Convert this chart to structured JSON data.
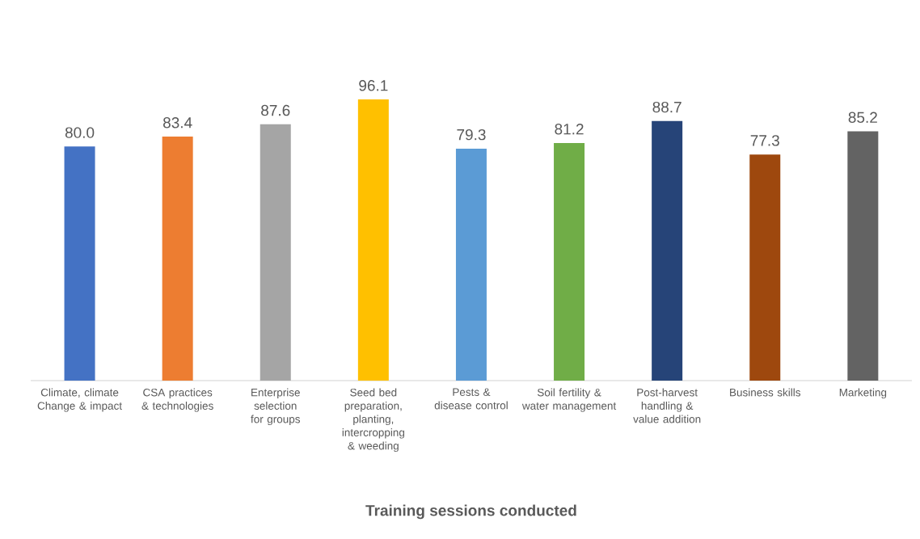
{
  "chart_data": {
    "type": "bar",
    "xlabel": "Training sessions conducted",
    "categories": [
      "Climate, climate Change & impact",
      "CSA practices & technologies",
      "Enterprise selection for groups",
      "Seed bed preparation, planting, intercropping & weeding",
      "Pests & disease control",
      "Soil fertility & water management",
      "Post-harvest handling & value addition",
      "Business skills",
      "Marketing"
    ],
    "values": [
      80.0,
      83.4,
      87.6,
      96.1,
      79.3,
      81.2,
      88.7,
      77.3,
      85.2
    ],
    "value_labels": [
      "80.0",
      "83.4",
      "87.6",
      "96.1",
      "79.3",
      "81.2",
      "88.7",
      "77.3",
      "85.2"
    ],
    "colors": [
      "#4472c4",
      "#ed7d31",
      "#a5a5a5",
      "#ffc000",
      "#5b9bd5",
      "#70ad47",
      "#264478",
      "#9e480e",
      "#636363"
    ]
  }
}
